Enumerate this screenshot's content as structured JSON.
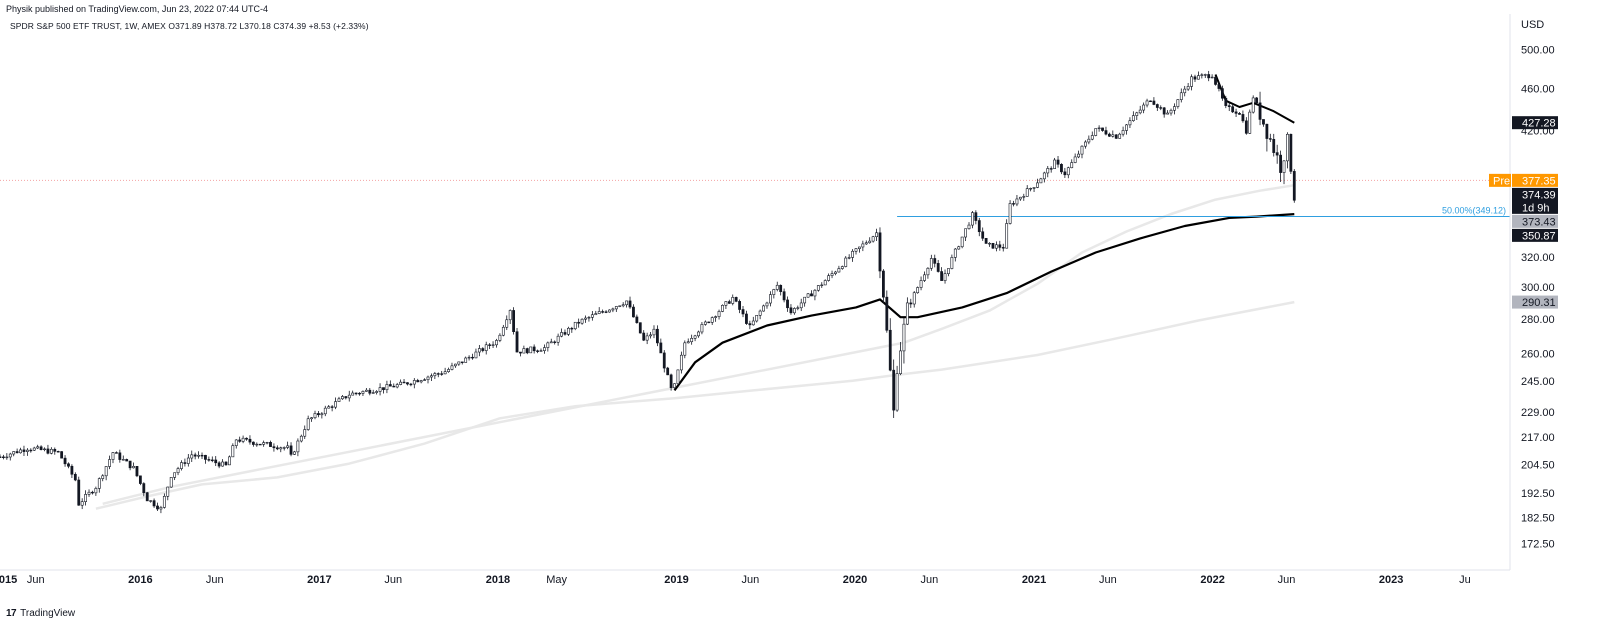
{
  "header": {
    "published": "Physik published on TradingView.com, Jun 23, 2022 07:44 UTC-4",
    "symbol_line": "SPDR S&P 500 ETF TRUST, 1W, AMEX  O371.89  H378.72  L370.18  C374.39  +8.53 (+2.33%)"
  },
  "footer": {
    "logo": "17",
    "brand": "TradingView"
  },
  "chart_data": {
    "type": "candlestick",
    "currency": "USD",
    "y_scale": "log",
    "ylim": [
      163,
      540
    ],
    "y_ticks": [
      500,
      460,
      420,
      320,
      300,
      280,
      260,
      245,
      229,
      217,
      204.5,
      192.5,
      182.5,
      172.5
    ],
    "y_tick_labels": [
      "500.00",
      "460.00",
      "420.00",
      "320.00",
      "300.00",
      "280.00",
      "260.00",
      "245.00",
      "229.00",
      "217.00",
      "204.50",
      "192.50",
      "182.50",
      "172.50"
    ],
    "x_range": [
      "2015-03-20",
      "2023-09-01"
    ],
    "x_ticks": [
      {
        "label": "2015",
        "date": "2015-01-01",
        "year": true
      },
      {
        "label": "Jun",
        "date": "2015-06-01",
        "year": false
      },
      {
        "label": "2016",
        "date": "2016-01-01",
        "year": true
      },
      {
        "label": "Jun",
        "date": "2016-06-01",
        "year": false
      },
      {
        "label": "2017",
        "date": "2017-01-01",
        "year": true
      },
      {
        "label": "Jun",
        "date": "2017-06-01",
        "year": false
      },
      {
        "label": "2018",
        "date": "2018-01-01",
        "year": true
      },
      {
        "label": "May",
        "date": "2018-05-01",
        "year": false
      },
      {
        "label": "2019",
        "date": "2019-01-01",
        "year": true
      },
      {
        "label": "Jun",
        "date": "2019-06-01",
        "year": false
      },
      {
        "label": "2020",
        "date": "2020-01-01",
        "year": true
      },
      {
        "label": "Jun",
        "date": "2020-06-01",
        "year": false
      },
      {
        "label": "2021",
        "date": "2021-01-01",
        "year": true
      },
      {
        "label": "Jun",
        "date": "2021-06-01",
        "year": false
      },
      {
        "label": "2022",
        "date": "2022-01-01",
        "year": true
      },
      {
        "label": "Jun",
        "date": "2022-06-01",
        "year": false
      },
      {
        "label": "2023",
        "date": "2023-01-01",
        "year": true
      },
      {
        "label": "Ju",
        "date": "2023-06-01",
        "year": false
      }
    ],
    "price_path": [
      [
        "2015-03-20",
        208
      ],
      [
        "2015-05-15",
        212
      ],
      [
        "2015-07-17",
        210
      ],
      [
        "2015-08-21",
        198
      ],
      [
        "2015-08-28",
        188
      ],
      [
        "2015-10-02",
        195
      ],
      [
        "2015-11-06",
        210
      ],
      [
        "2015-12-18",
        203
      ],
      [
        "2016-01-15",
        190
      ],
      [
        "2016-02-12",
        186
      ],
      [
        "2016-03-04",
        200
      ],
      [
        "2016-04-15",
        209
      ],
      [
        "2016-06-24",
        204
      ],
      [
        "2016-07-15",
        216
      ],
      [
        "2016-10-28",
        212
      ],
      [
        "2016-11-04",
        208
      ],
      [
        "2016-12-09",
        225
      ],
      [
        "2017-03-03",
        238
      ],
      [
        "2017-06-16",
        243
      ],
      [
        "2017-09-15",
        250
      ],
      [
        "2017-12-29",
        267
      ],
      [
        "2018-01-26",
        286
      ],
      [
        "2018-02-09",
        261
      ],
      [
        "2018-04-06",
        263
      ],
      [
        "2018-06-15",
        278
      ],
      [
        "2018-09-21",
        291
      ],
      [
        "2018-10-26",
        267
      ],
      [
        "2018-11-16",
        273
      ],
      [
        "2018-12-24",
        238
      ],
      [
        "2019-01-18",
        266
      ],
      [
        "2019-04-26",
        293
      ],
      [
        "2019-05-31",
        275
      ],
      [
        "2019-07-26",
        301
      ],
      [
        "2019-08-23",
        284
      ],
      [
        "2019-10-25",
        302
      ],
      [
        "2019-12-27",
        322
      ],
      [
        "2020-02-14",
        337
      ],
      [
        "2020-02-28",
        296
      ],
      [
        "2020-03-20",
        229
      ],
      [
        "2020-03-27",
        253
      ],
      [
        "2020-04-17",
        286
      ],
      [
        "2020-06-05",
        319
      ],
      [
        "2020-06-26",
        304
      ],
      [
        "2020-08-28",
        350
      ],
      [
        "2020-09-25",
        328
      ],
      [
        "2020-10-30",
        327
      ],
      [
        "2020-11-13",
        358
      ],
      [
        "2020-12-31",
        373
      ],
      [
        "2021-02-12",
        392
      ],
      [
        "2021-03-05",
        383
      ],
      [
        "2021-05-07",
        422
      ],
      [
        "2021-06-18",
        415
      ],
      [
        "2021-08-27",
        450
      ],
      [
        "2021-10-01",
        434
      ],
      [
        "2021-11-19",
        470
      ],
      [
        "2021-12-31",
        474
      ],
      [
        "2022-01-28",
        441
      ],
      [
        "2022-02-25",
        437
      ],
      [
        "2022-03-11",
        420
      ],
      [
        "2022-03-25",
        452
      ],
      [
        "2022-04-29",
        412
      ],
      [
        "2022-05-20",
        389
      ],
      [
        "2022-06-03",
        410
      ],
      [
        "2022-06-10",
        389
      ],
      [
        "2022-06-17",
        366
      ],
      [
        "2022-06-23",
        374.39
      ]
    ],
    "moving_averages": [
      {
        "color": "#000000",
        "width": 2.2,
        "points": [
          [
            "2018-12-28",
            240
          ],
          [
            "2019-02-08",
            255
          ],
          [
            "2019-04-05",
            266
          ],
          [
            "2019-07-05",
            276
          ],
          [
            "2019-10-04",
            282
          ],
          [
            "2020-01-03",
            287
          ],
          [
            "2020-02-21",
            292
          ],
          [
            "2020-04-03",
            281
          ],
          [
            "2020-05-08",
            281
          ],
          [
            "2020-08-07",
            287
          ],
          [
            "2020-11-06",
            296
          ],
          [
            "2021-02-05",
            310
          ],
          [
            "2021-05-07",
            323
          ],
          [
            "2021-08-06",
            333
          ],
          [
            "2021-11-05",
            342
          ],
          [
            "2022-02-04",
            348
          ],
          [
            "2022-04-01",
            349
          ],
          [
            "2022-06-17",
            350.87
          ]
        ]
      },
      {
        "color": "#000000",
        "width": 2,
        "points": [
          [
            "2022-01-07",
            474
          ],
          [
            "2022-01-28",
            448
          ],
          [
            "2022-02-25",
            442
          ],
          [
            "2022-03-25",
            446
          ],
          [
            "2022-05-06",
            438
          ],
          [
            "2022-06-17",
            427.28
          ]
        ]
      },
      {
        "color": "#e8e8e8",
        "width": 2.5,
        "points": [
          [
            "2015-10-02",
            186
          ],
          [
            "2016-01-15",
            191
          ],
          [
            "2016-05-06",
            196
          ],
          [
            "2016-10-07",
            199
          ],
          [
            "2017-03-03",
            205
          ],
          [
            "2017-08-04",
            214
          ],
          [
            "2018-01-05",
            226
          ],
          [
            "2018-06-08",
            232
          ],
          [
            "2018-12-28",
            236
          ],
          [
            "2019-06-07",
            240
          ],
          [
            "2019-12-27",
            245
          ],
          [
            "2020-03-20",
            248
          ],
          [
            "2020-06-26",
            251
          ],
          [
            "2021-01-08",
            259
          ],
          [
            "2021-06-11",
            268
          ],
          [
            "2021-12-03",
            279
          ],
          [
            "2022-06-17",
            290.31
          ]
        ]
      },
      {
        "color": "#e8e8e8",
        "width": 2.5,
        "points": [
          [
            "2015-10-16",
            188
          ],
          [
            "2016-03-04",
            195
          ],
          [
            "2020-04-10",
            266
          ],
          [
            "2020-06-26",
            274
          ],
          [
            "2020-10-02",
            285
          ],
          [
            "2021-01-08",
            302
          ],
          [
            "2021-04-09",
            323
          ],
          [
            "2021-07-09",
            338
          ],
          [
            "2021-10-08",
            351
          ],
          [
            "2022-01-07",
            362
          ],
          [
            "2022-04-08",
            369
          ],
          [
            "2022-06-17",
            373.43
          ]
        ]
      }
    ],
    "prev_close_line": 377.35,
    "fib_level": {
      "label": "50.00%(349.12)",
      "value": 349.12,
      "start": "2020-03-27",
      "color": "#2f9fe0"
    },
    "price_labels": [
      {
        "text": "427.28",
        "value": 427.28,
        "bg": "#131722",
        "fg": "#ffffff"
      },
      {
        "text": "377.35",
        "value": 377.35,
        "bg": "#ff9800",
        "fg": "#ffffff",
        "prefix": "Pre"
      },
      {
        "text": "374.39",
        "value": 374.39,
        "bg": "#131722",
        "fg": "#ffffff",
        "sub": "1d 9h"
      },
      {
        "text": "373.43",
        "value": 373.43,
        "bg": "#b2b5be",
        "fg": "#131722"
      },
      {
        "text": "350.87",
        "value": 350.87,
        "bg": "#131722",
        "fg": "#ffffff"
      },
      {
        "text": "290.31",
        "value": 290.31,
        "bg": "#b2b5be",
        "fg": "#131722"
      }
    ]
  }
}
